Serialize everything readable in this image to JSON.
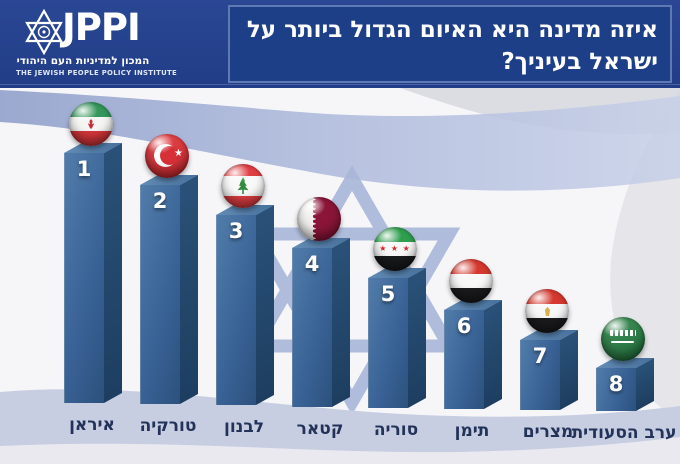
{
  "header": {
    "logo": {
      "brand": "JPPI",
      "tagline_he": "המכון למדיניות העם היהודי",
      "tagline_en": "THE JEWISH PEOPLE POLICY INSTITUTE"
    },
    "title_line1": "איזה מדינה היא האיום הגדול ביותר על",
    "title_line2": "ישראל בעיניך?"
  },
  "chart_data": {
    "type": "bar",
    "title": "איזה מדינה היא האיום הגדול ביותר על ישראל בעיניך?",
    "orientation": "vertical",
    "note": "Ranking podium: 8 columns of descending height, each topped by a glossy country-flag sphere; no numeric axis shown",
    "categories": [
      "איראן",
      "טורקיה",
      "לבנון",
      "קטאר",
      "סוריה",
      "תימן",
      "מצרים",
      "ערב הסעודית"
    ],
    "values": [
      1,
      2,
      3,
      4,
      5,
      6,
      7,
      8
    ],
    "items": [
      {
        "rank": "1",
        "label": "איראן",
        "country_en": "Iran",
        "flag": "iran"
      },
      {
        "rank": "2",
        "label": "טורקיה",
        "country_en": "Turkey",
        "flag": "turkey"
      },
      {
        "rank": "3",
        "label": "לבנון",
        "country_en": "Lebanon",
        "flag": "lebanon"
      },
      {
        "rank": "4",
        "label": "קטאר",
        "country_en": "Qatar",
        "flag": "qatar"
      },
      {
        "rank": "5",
        "label": "סוריה",
        "country_en": "Syria",
        "flag": "syria"
      },
      {
        "rank": "6",
        "label": "תימן",
        "country_en": "Yemen",
        "flag": "yemen"
      },
      {
        "rank": "7",
        "label": "מצרים",
        "country_en": "Egypt",
        "flag": "egypt"
      },
      {
        "rank": "8",
        "label": "ערב הסעודית",
        "country_en": "Saudi Arabia",
        "flag": "saudi"
      }
    ],
    "legend": null,
    "grid": false
  },
  "colors": {
    "header_navy": "#24418e",
    "title_box_navy": "#1d3f88",
    "bar_front_blue": "#3a6397",
    "bar_side_blue": "#23486e",
    "bar_top_blue": "#567fa8",
    "background_star_blue": "#a9b6d8",
    "flag_stripe_blue": "#8d9dc9",
    "ground_periwinkle": "#c7cee2",
    "label_navy": "#223258",
    "title_text": "#ffffff"
  }
}
